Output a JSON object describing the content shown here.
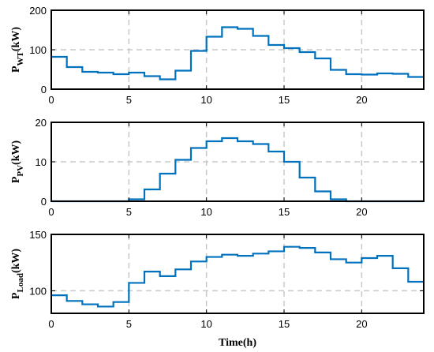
{
  "chart_data": [
    {
      "type": "line",
      "step": true,
      "ylabel": {
        "main": "P",
        "sub": "WT",
        "unit": "(kW)"
      },
      "xlim": [
        0,
        24
      ],
      "ylim": [
        0,
        200
      ],
      "xticks": [
        0,
        5,
        10,
        15,
        20
      ],
      "yticks": [
        0,
        100,
        200
      ],
      "grid": true,
      "series": [
        {
          "color": "#0072BD",
          "x": [
            0,
            1,
            2,
            3,
            4,
            5,
            6,
            7,
            8,
            9,
            10,
            11,
            12,
            13,
            14,
            15,
            16,
            17,
            18,
            19,
            20,
            21,
            22,
            23
          ],
          "values": [
            82,
            56,
            44,
            42,
            38,
            42,
            33,
            25,
            47,
            97,
            133,
            157,
            153,
            135,
            112,
            104,
            94,
            78,
            49,
            38,
            37,
            40,
            39,
            31
          ]
        }
      ]
    },
    {
      "type": "line",
      "step": true,
      "ylabel": {
        "main": "P",
        "sub": "PV",
        "unit": "(kW)"
      },
      "xlim": [
        0,
        24
      ],
      "ylim": [
        0,
        20
      ],
      "xticks": [
        0,
        5,
        10,
        15,
        20
      ],
      "yticks": [
        0,
        10,
        20
      ],
      "grid": true,
      "series": [
        {
          "color": "#0072BD",
          "x": [
            0,
            1,
            2,
            3,
            4,
            5,
            6,
            7,
            8,
            9,
            10,
            11,
            12,
            13,
            14,
            15,
            16,
            17,
            18,
            19,
            20,
            21,
            22,
            23
          ],
          "values": [
            0,
            0,
            0,
            0,
            0,
            0.5,
            3,
            7,
            10.5,
            13.5,
            15.2,
            16,
            15.2,
            14.5,
            12.6,
            10,
            6,
            2.5,
            0.5,
            0,
            0,
            0,
            0,
            0
          ]
        }
      ]
    },
    {
      "type": "line",
      "step": true,
      "ylabel": {
        "main": "P",
        "sub": "Load",
        "unit": "(kW)"
      },
      "xlabel": "Time(h)",
      "xlim": [
        0,
        24
      ],
      "ylim": [
        80,
        150
      ],
      "xticks": [
        0,
        5,
        10,
        15,
        20
      ],
      "yticks": [
        100,
        150
      ],
      "grid": true,
      "series": [
        {
          "color": "#0072BD",
          "x": [
            0,
            1,
            2,
            3,
            4,
            5,
            6,
            7,
            8,
            9,
            10,
            11,
            12,
            13,
            14,
            15,
            16,
            17,
            18,
            19,
            20,
            21,
            22,
            23
          ],
          "values": [
            96,
            91,
            88,
            86,
            90,
            107,
            117,
            113,
            119,
            126,
            130,
            132,
            131,
            133,
            135,
            139,
            138,
            134,
            128,
            125,
            129,
            131,
            120,
            108
          ]
        }
      ]
    }
  ]
}
